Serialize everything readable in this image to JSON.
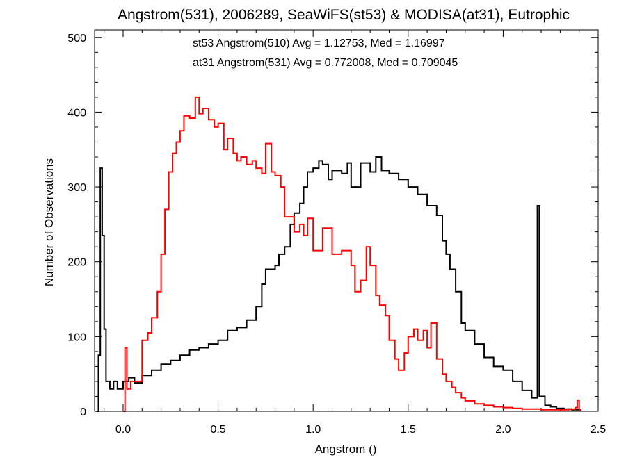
{
  "chart_data": {
    "type": "line",
    "title": "Angstrom(531), 2006289, SeaWiFS(st53) & MODISA(at31), Eutrophic",
    "xlabel": "Angstrom ()",
    "ylabel": "Number of Observations",
    "xlim": [
      -0.15,
      2.5
    ],
    "ylim": [
      0,
      510
    ],
    "x_ticks": [
      0.0,
      0.5,
      1.0,
      1.5,
      2.0,
      2.5
    ],
    "x_tick_labels": [
      "0.0",
      "0.5",
      "1.0",
      "1.5",
      "2.0",
      "2.5"
    ],
    "y_ticks": [
      0,
      100,
      200,
      300,
      400,
      500
    ],
    "y_tick_labels": [
      "0",
      "100",
      "200",
      "300",
      "400",
      "500"
    ],
    "grid": false,
    "annotations": [
      {
        "text": "st53 Angstrom(510) Avg = 1.12753, Med = 1.16997",
        "color": "#000000"
      },
      {
        "text": "at31 Angstrom(531) Avg = 0.772008, Med = 0.709045",
        "color": "#ff0000"
      }
    ],
    "series": [
      {
        "color": "#000000",
        "style": "step",
        "points": [
          [
            -0.14,
            0
          ],
          [
            -0.13,
            75
          ],
          [
            -0.12,
            325
          ],
          [
            -0.11,
            235
          ],
          [
            -0.1,
            110
          ],
          [
            -0.09,
            40
          ],
          [
            -0.07,
            30
          ],
          [
            -0.05,
            40
          ],
          [
            -0.03,
            30
          ],
          [
            0.0,
            40
          ],
          [
            0.03,
            45
          ],
          [
            0.06,
            38
          ],
          [
            0.1,
            48
          ],
          [
            0.15,
            55
          ],
          [
            0.2,
            63
          ],
          [
            0.25,
            68
          ],
          [
            0.3,
            75
          ],
          [
            0.35,
            82
          ],
          [
            0.4,
            85
          ],
          [
            0.45,
            90
          ],
          [
            0.5,
            95
          ],
          [
            0.55,
            108
          ],
          [
            0.6,
            112
          ],
          [
            0.65,
            122
          ],
          [
            0.7,
            140
          ],
          [
            0.73,
            170
          ],
          [
            0.75,
            190
          ],
          [
            0.8,
            195
          ],
          [
            0.82,
            210
          ],
          [
            0.85,
            220
          ],
          [
            0.88,
            250
          ],
          [
            0.9,
            265
          ],
          [
            0.93,
            278
          ],
          [
            0.95,
            300
          ],
          [
            0.97,
            320
          ],
          [
            1.0,
            325
          ],
          [
            1.03,
            335
          ],
          [
            1.05,
            330
          ],
          [
            1.08,
            310
          ],
          [
            1.1,
            322
          ],
          [
            1.13,
            322
          ],
          [
            1.15,
            318
          ],
          [
            1.18,
            332
          ],
          [
            1.2,
            300
          ],
          [
            1.25,
            332
          ],
          [
            1.3,
            320
          ],
          [
            1.33,
            340
          ],
          [
            1.36,
            322
          ],
          [
            1.4,
            318
          ],
          [
            1.45,
            310
          ],
          [
            1.5,
            300
          ],
          [
            1.55,
            290
          ],
          [
            1.6,
            275
          ],
          [
            1.65,
            262
          ],
          [
            1.68,
            228
          ],
          [
            1.7,
            210
          ],
          [
            1.72,
            190
          ],
          [
            1.75,
            160
          ],
          [
            1.78,
            118
          ],
          [
            1.8,
            108
          ],
          [
            1.85,
            90
          ],
          [
            1.9,
            72
          ],
          [
            1.95,
            60
          ],
          [
            2.0,
            55
          ],
          [
            2.05,
            40
          ],
          [
            2.1,
            28
          ],
          [
            2.15,
            18
          ],
          [
            2.18,
            275
          ],
          [
            2.19,
            20
          ],
          [
            2.22,
            8
          ],
          [
            2.25,
            6
          ],
          [
            2.28,
            4
          ],
          [
            2.32,
            3
          ],
          [
            2.36,
            2
          ],
          [
            2.4,
            1
          ]
        ]
      },
      {
        "color": "#ff0000",
        "style": "step",
        "points": [
          [
            0.0,
            0
          ],
          [
            0.01,
            85
          ],
          [
            0.02,
            30
          ],
          [
            0.04,
            40
          ],
          [
            0.07,
            40
          ],
          [
            0.1,
            95
          ],
          [
            0.13,
            105
          ],
          [
            0.15,
            125
          ],
          [
            0.18,
            160
          ],
          [
            0.2,
            210
          ],
          [
            0.22,
            270
          ],
          [
            0.24,
            320
          ],
          [
            0.26,
            345
          ],
          [
            0.28,
            360
          ],
          [
            0.3,
            375
          ],
          [
            0.32,
            395
          ],
          [
            0.35,
            392
          ],
          [
            0.38,
            420
          ],
          [
            0.4,
            398
          ],
          [
            0.42,
            405
          ],
          [
            0.45,
            390
          ],
          [
            0.48,
            380
          ],
          [
            0.5,
            385
          ],
          [
            0.53,
            350
          ],
          [
            0.55,
            365
          ],
          [
            0.58,
            345
          ],
          [
            0.6,
            335
          ],
          [
            0.62,
            340
          ],
          [
            0.65,
            330
          ],
          [
            0.68,
            335
          ],
          [
            0.7,
            325
          ],
          [
            0.73,
            318
          ],
          [
            0.75,
            358
          ],
          [
            0.78,
            320
          ],
          [
            0.8,
            315
          ],
          [
            0.83,
            300
          ],
          [
            0.85,
            260
          ],
          [
            0.88,
            260
          ],
          [
            0.9,
            240
          ],
          [
            0.93,
            250
          ],
          [
            0.95,
            235
          ],
          [
            0.97,
            258
          ],
          [
            1.0,
            215
          ],
          [
            1.05,
            245
          ],
          [
            1.1,
            210
          ],
          [
            1.15,
            215
          ],
          [
            1.2,
            195
          ],
          [
            1.22,
            160
          ],
          [
            1.25,
            175
          ],
          [
            1.28,
            220
          ],
          [
            1.3,
            195
          ],
          [
            1.33,
            155
          ],
          [
            1.35,
            142
          ],
          [
            1.38,
            128
          ],
          [
            1.4,
            95
          ],
          [
            1.43,
            70
          ],
          [
            1.45,
            55
          ],
          [
            1.48,
            78
          ],
          [
            1.5,
            100
          ],
          [
            1.53,
            110
          ],
          [
            1.55,
            95
          ],
          [
            1.58,
            108
          ],
          [
            1.6,
            85
          ],
          [
            1.62,
            118
          ],
          [
            1.65,
            70
          ],
          [
            1.68,
            50
          ],
          [
            1.7,
            40
          ],
          [
            1.73,
            32
          ],
          [
            1.75,
            25
          ],
          [
            1.78,
            18
          ],
          [
            1.8,
            14
          ],
          [
            1.85,
            10
          ],
          [
            1.9,
            8
          ],
          [
            1.95,
            6
          ],
          [
            2.0,
            5
          ],
          [
            2.05,
            4
          ],
          [
            2.1,
            3
          ],
          [
            2.15,
            3
          ],
          [
            2.2,
            2
          ],
          [
            2.25,
            2
          ],
          [
            2.3,
            2
          ],
          [
            2.35,
            3
          ],
          [
            2.38,
            5
          ],
          [
            2.39,
            15
          ],
          [
            2.4,
            2
          ]
        ]
      }
    ]
  }
}
